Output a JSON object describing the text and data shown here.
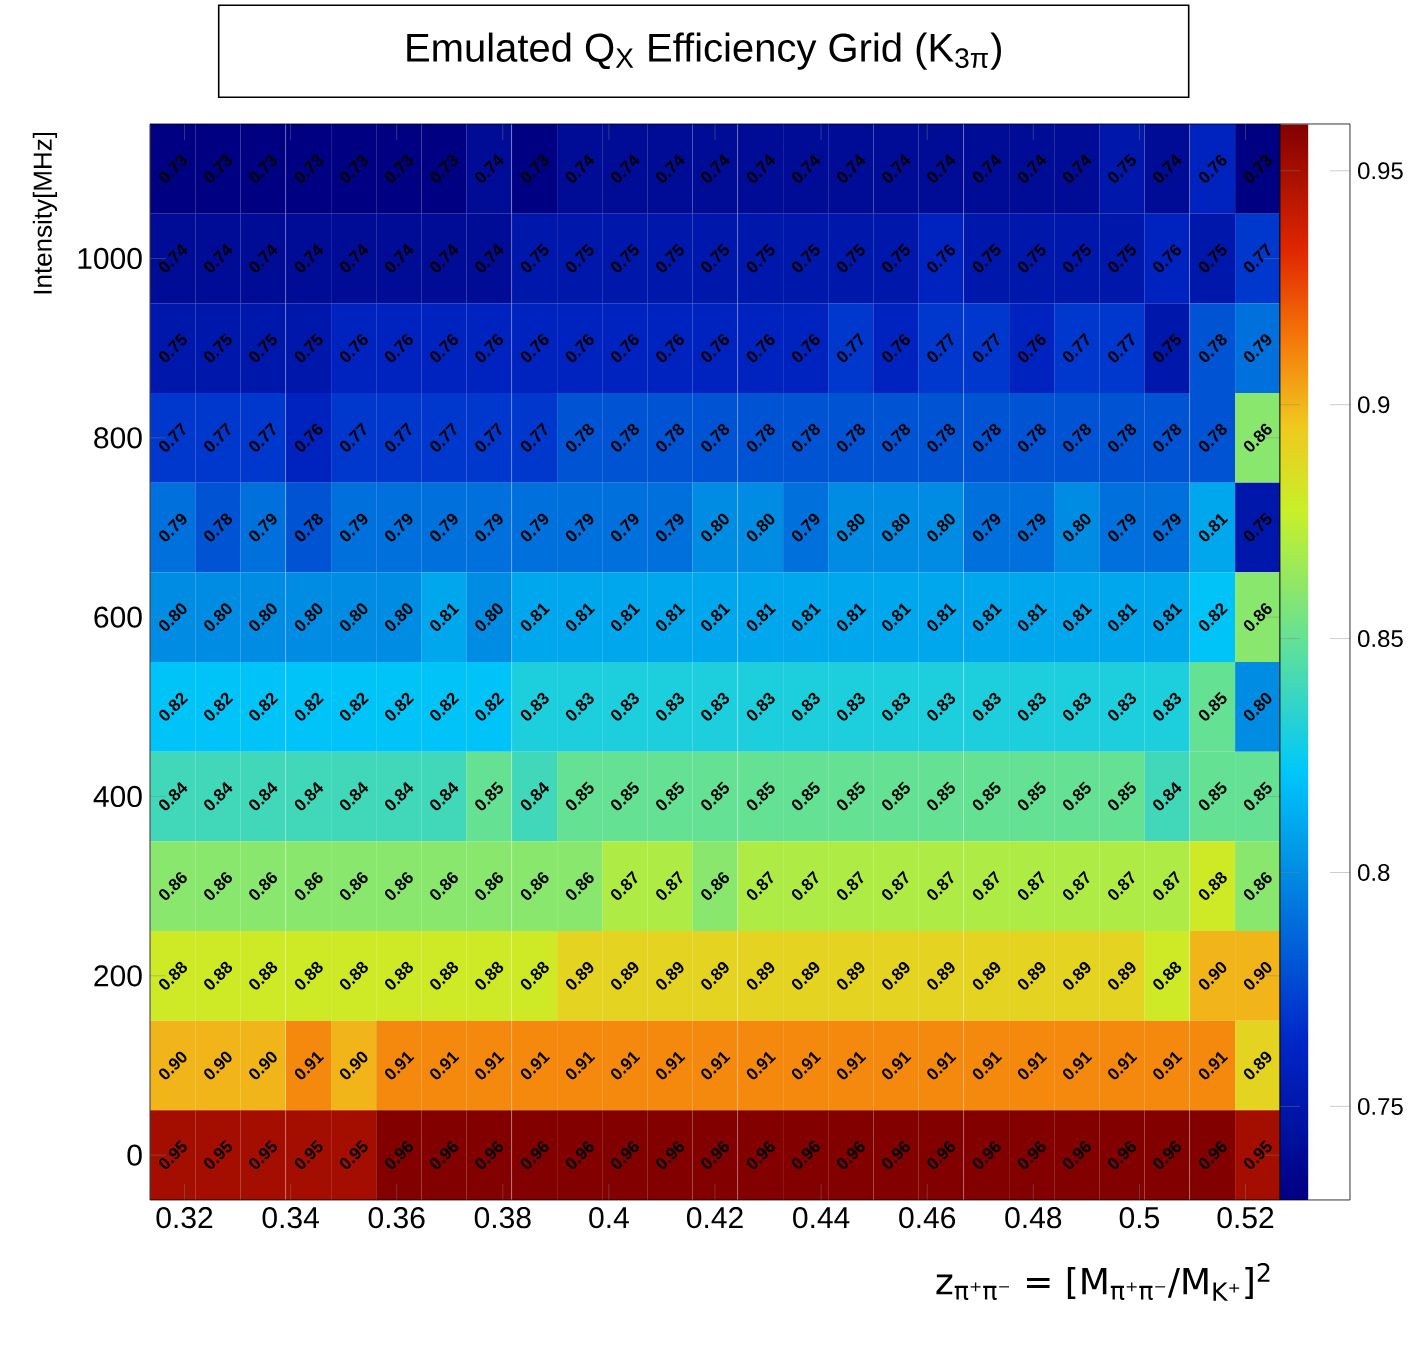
{
  "chart_data": {
    "type": "heatmap",
    "title": "Emulated Q$_{X}$ Efficiency Grid (K$_{3π}$)",
    "xlabel": "z$_{π⁺π⁻}$ = [M$_{π⁺π⁻}$/M$_{K⁺}$]$^{2}$",
    "ylabel": "Intensity[MHz]",
    "x": [
      0.3178,
      0.3263,
      0.3348,
      0.3434,
      0.3519,
      0.3604,
      0.3689,
      0.3774,
      0.386,
      0.3945,
      0.403,
      0.4115,
      0.42,
      0.4286,
      0.4371,
      0.4456,
      0.4541,
      0.4626,
      0.4712,
      0.4797,
      0.4882,
      0.4967,
      0.5052,
      0.5138,
      0.5223
    ],
    "y": [
      1100,
      1000,
      900,
      800,
      700,
      600,
      500,
      400,
      300,
      200,
      100,
      0
    ],
    "xlim": [
      0.3135,
      0.5265
    ],
    "ylim": [
      -50,
      1150
    ],
    "xticks": [
      0.32,
      0.34,
      0.36,
      0.38,
      0.4,
      0.42,
      0.44,
      0.46,
      0.48,
      0.5,
      0.52
    ],
    "yticks": [
      0,
      200,
      400,
      600,
      800,
      1000
    ],
    "clim": [
      0.73,
      0.96
    ],
    "cticks": [
      0.75,
      0.8,
      0.85,
      0.9,
      0.95
    ],
    "cells": [
      [
        0.73,
        0.73,
        0.73,
        0.73,
        0.73,
        0.73,
        0.73,
        0.74,
        0.73,
        0.74,
        0.74,
        0.74,
        0.74,
        0.74,
        0.74,
        0.74,
        0.74,
        0.74,
        0.74,
        0.74,
        0.74,
        0.75,
        0.74,
        0.76,
        0.73
      ],
      [
        0.74,
        0.74,
        0.74,
        0.74,
        0.74,
        0.74,
        0.74,
        0.74,
        0.75,
        0.75,
        0.75,
        0.75,
        0.75,
        0.75,
        0.75,
        0.75,
        0.75,
        0.76,
        0.75,
        0.75,
        0.75,
        0.75,
        0.76,
        0.75,
        0.77
      ],
      [
        0.75,
        0.75,
        0.75,
        0.75,
        0.76,
        0.76,
        0.76,
        0.76,
        0.76,
        0.76,
        0.76,
        0.76,
        0.76,
        0.76,
        0.76,
        0.77,
        0.76,
        0.77,
        0.77,
        0.76,
        0.77,
        0.77,
        0.75,
        0.78,
        0.79
      ],
      [
        0.77,
        0.77,
        0.77,
        0.76,
        0.77,
        0.77,
        0.77,
        0.77,
        0.77,
        0.78,
        0.78,
        0.78,
        0.78,
        0.78,
        0.78,
        0.78,
        0.78,
        0.78,
        0.78,
        0.78,
        0.78,
        0.78,
        0.78,
        0.78,
        0.86
      ],
      [
        0.79,
        0.78,
        0.79,
        0.78,
        0.79,
        0.79,
        0.79,
        0.79,
        0.79,
        0.79,
        0.79,
        0.79,
        0.8,
        0.8,
        0.79,
        0.8,
        0.8,
        0.8,
        0.79,
        0.79,
        0.8,
        0.79,
        0.79,
        0.81,
        0.75
      ],
      [
        0.8,
        0.8,
        0.8,
        0.8,
        0.8,
        0.8,
        0.81,
        0.8,
        0.81,
        0.81,
        0.81,
        0.81,
        0.81,
        0.81,
        0.81,
        0.81,
        0.81,
        0.81,
        0.81,
        0.81,
        0.81,
        0.81,
        0.81,
        0.82,
        0.86
      ],
      [
        0.82,
        0.82,
        0.82,
        0.82,
        0.82,
        0.82,
        0.82,
        0.82,
        0.83,
        0.83,
        0.83,
        0.83,
        0.83,
        0.83,
        0.83,
        0.83,
        0.83,
        0.83,
        0.83,
        0.83,
        0.83,
        0.83,
        0.83,
        0.85,
        0.8
      ],
      [
        0.84,
        0.84,
        0.84,
        0.84,
        0.84,
        0.84,
        0.84,
        0.85,
        0.84,
        0.85,
        0.85,
        0.85,
        0.85,
        0.85,
        0.85,
        0.85,
        0.85,
        0.85,
        0.85,
        0.85,
        0.85,
        0.85,
        0.84,
        0.85,
        0.85
      ],
      [
        0.86,
        0.86,
        0.86,
        0.86,
        0.86,
        0.86,
        0.86,
        0.86,
        0.86,
        0.86,
        0.87,
        0.87,
        0.86,
        0.87,
        0.87,
        0.87,
        0.87,
        0.87,
        0.87,
        0.87,
        0.87,
        0.87,
        0.87,
        0.88,
        0.86
      ],
      [
        0.88,
        0.88,
        0.88,
        0.88,
        0.88,
        0.88,
        0.88,
        0.88,
        0.88,
        0.89,
        0.89,
        0.89,
        0.89,
        0.89,
        0.89,
        0.89,
        0.89,
        0.89,
        0.89,
        0.89,
        0.89,
        0.89,
        0.88,
        0.9,
        0.9
      ],
      [
        0.9,
        0.9,
        0.9,
        0.91,
        0.9,
        0.91,
        0.91,
        0.91,
        0.91,
        0.91,
        0.91,
        0.91,
        0.91,
        0.91,
        0.91,
        0.91,
        0.91,
        0.91,
        0.91,
        0.91,
        0.91,
        0.91,
        0.91,
        0.91,
        0.89
      ],
      [
        0.95,
        0.95,
        0.95,
        0.95,
        0.95,
        0.96,
        0.96,
        0.96,
        0.96,
        0.96,
        0.96,
        0.96,
        0.96,
        0.96,
        0.96,
        0.96,
        0.96,
        0.96,
        0.96,
        0.96,
        0.96,
        0.96,
        0.96,
        0.96,
        0.95
      ]
    ],
    "cell_labels": [
      [
        "0.73",
        "0.73",
        "0.73",
        "0.73",
        "0.73",
        "0.73",
        "0.73",
        "0.74",
        "0.73",
        "0.74",
        "0.74",
        "0.74",
        "0.74",
        "0.74",
        "0.74",
        "0.74",
        "0.74",
        "0.74",
        "0.74",
        "0.74",
        "0.74",
        "0.75",
        "0.74",
        "0.76",
        "0.73"
      ],
      [
        "0.74",
        "0.74",
        "0.74",
        "0.74",
        "0.74",
        "0.74",
        "0.74",
        "0.74",
        "0.75",
        "0.75",
        "0.75",
        "0.75",
        "0.75",
        "0.75",
        "0.75",
        "0.75",
        "0.75",
        "0.76",
        "0.75",
        "0.75",
        "0.75",
        "0.75",
        "0.76",
        "0.75",
        "0.77"
      ],
      [
        "0.75",
        "0.75",
        "0.75",
        "0.75",
        "0.76",
        "0.76",
        "0.76",
        "0.76",
        "0.76",
        "0.76",
        "0.76",
        "0.76",
        "0.76",
        "0.76",
        "0.76",
        "0.77",
        "0.76",
        "0.77",
        "0.77",
        "0.76",
        "0.77",
        "0.77",
        "0.75",
        "0.78",
        "0.79"
      ],
      [
        "0.77",
        "0.77",
        "0.77",
        "0.76",
        "0.77",
        "0.77",
        "0.77",
        "0.77",
        "0.77",
        "0.78",
        "0.78",
        "0.78",
        "0.78",
        "0.78",
        "0.78",
        "0.78",
        "0.78",
        "0.78",
        "0.78",
        "0.78",
        "0.78",
        "0.78",
        "0.78",
        "0.78",
        "0.86"
      ],
      [
        "0.79",
        "0.78",
        "0.79",
        "0.78",
        "0.79",
        "0.79",
        "0.79",
        "0.79",
        "0.79",
        "0.79",
        "0.79",
        "0.79",
        "0.80",
        "0.80",
        "0.79",
        "0.80",
        "0.80",
        "0.80",
        "0.79",
        "0.79",
        "0.80",
        "0.79",
        "0.79",
        "0.81",
        "0.75"
      ],
      [
        "0.80",
        "0.80",
        "0.80",
        "0.80",
        "0.80",
        "0.80",
        "0.81",
        "0.80",
        "0.81",
        "0.81",
        "0.81",
        "0.81",
        "0.81",
        "0.81",
        "0.81",
        "0.81",
        "0.81",
        "0.81",
        "0.81",
        "0.81",
        "0.81",
        "0.81",
        "0.81",
        "0.82",
        "0.86"
      ],
      [
        "0.82",
        "0.82",
        "0.82",
        "0.82",
        "0.82",
        "0.82",
        "0.82",
        "0.82",
        "0.83",
        "0.83",
        "0.83",
        "0.83",
        "0.83",
        "0.83",
        "0.83",
        "0.83",
        "0.83",
        "0.83",
        "0.83",
        "0.83",
        "0.83",
        "0.83",
        "0.83",
        "0.85",
        "0.80"
      ],
      [
        "0.84",
        "0.84",
        "0.84",
        "0.84",
        "0.84",
        "0.84",
        "0.84",
        "0.85",
        "0.84",
        "0.85",
        "0.85",
        "0.85",
        "0.85",
        "0.85",
        "0.85",
        "0.85",
        "0.85",
        "0.85",
        "0.85",
        "0.85",
        "0.85",
        "0.85",
        "0.84",
        "0.85",
        "0.85"
      ],
      [
        "0.86",
        "0.86",
        "0.86",
        "0.86",
        "0.86",
        "0.86",
        "0.86",
        "0.86",
        "0.86",
        "0.86",
        "0.87",
        "0.87",
        "0.86",
        "0.87",
        "0.87",
        "0.87",
        "0.87",
        "0.87",
        "0.87",
        "0.87",
        "0.87",
        "0.87",
        "0.87",
        "0.88",
        "0.86"
      ],
      [
        "0.88",
        "0.88",
        "0.88",
        "0.88",
        "0.88",
        "0.88",
        "0.88",
        "0.88",
        "0.88",
        "0.89",
        "0.89",
        "0.89",
        "0.89",
        "0.89",
        "0.89",
        "0.89",
        "0.89",
        "0.89",
        "0.89",
        "0.89",
        "0.89",
        "0.89",
        "0.88",
        "0.90",
        "0.90"
      ],
      [
        "0.90",
        "0.90",
        "0.90",
        "0.91",
        "0.90",
        "0.91",
        "0.91",
        "0.91",
        "0.91",
        "0.91",
        "0.91",
        "0.91",
        "0.91",
        "0.91",
        "0.91",
        "0.91",
        "0.91",
        "0.91",
        "0.91",
        "0.91",
        "0.91",
        "0.91",
        "0.91",
        "0.91",
        "0.89"
      ],
      [
        "0.95",
        "0.95",
        "0.95",
        "0.95",
        "0.95",
        "0.96",
        "0.96",
        "0.96",
        "0.96",
        "0.96",
        "0.96",
        "0.96",
        "0.96",
        "0.96",
        "0.96",
        "0.96",
        "0.96",
        "0.96",
        "0.96",
        "0.96",
        "0.96",
        "0.96",
        "0.96",
        "0.96",
        "0.95"
      ]
    ]
  }
}
